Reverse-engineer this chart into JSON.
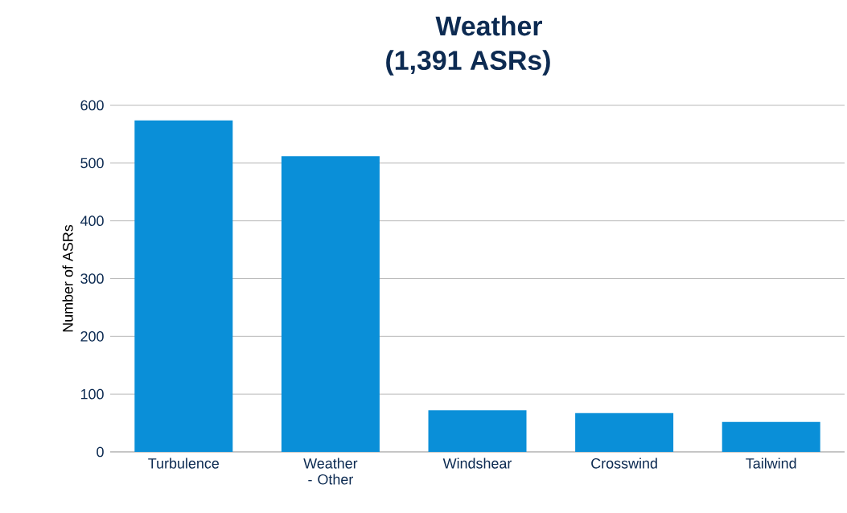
{
  "chart_data": {
    "type": "bar",
    "title": "Weather",
    "subtitle": "(1,391 ASRs)",
    "ylabel": "Number of ASRs",
    "categories": [
      "Turbulence",
      "Weather - Other",
      "Windshear",
      "Crosswind",
      "Tailwind"
    ],
    "values": [
      574,
      512,
      72,
      67,
      52
    ],
    "color": "#0a8fd8",
    "ylim": [
      0,
      600
    ],
    "yticks": [
      0,
      100,
      200,
      300,
      400,
      500,
      600
    ],
    "grid": "y"
  }
}
